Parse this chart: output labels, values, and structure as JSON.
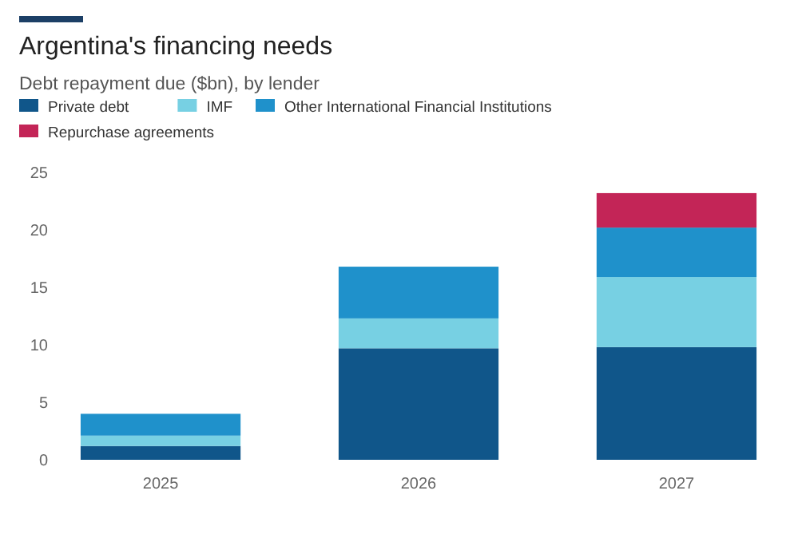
{
  "chart_data": {
    "type": "bar",
    "title": "Argentina's financing needs",
    "subtitle": "Debt repayment due ($bn), by lender",
    "categories": [
      "2025",
      "2026",
      "2027"
    ],
    "stacked": true,
    "legend": "top left",
    "grid": false,
    "ylim": [
      0,
      25
    ],
    "yticks": [
      0,
      5,
      10,
      15,
      20,
      25
    ],
    "series": [
      {
        "name": "Private debt",
        "color": "#10568a",
        "values": [
          1.2,
          9.7,
          9.8
        ]
      },
      {
        "name": "IMF",
        "color": "#77d0e3",
        "values": [
          0.9,
          2.6,
          6.1
        ]
      },
      {
        "name": "Other International Financial Institutions",
        "color": "#1f91cb",
        "values": [
          1.9,
          4.5,
          4.3
        ]
      },
      {
        "name": "Repurchase agreements",
        "color": "#c32557",
        "values": [
          0,
          0,
          3.0
        ]
      }
    ]
  }
}
